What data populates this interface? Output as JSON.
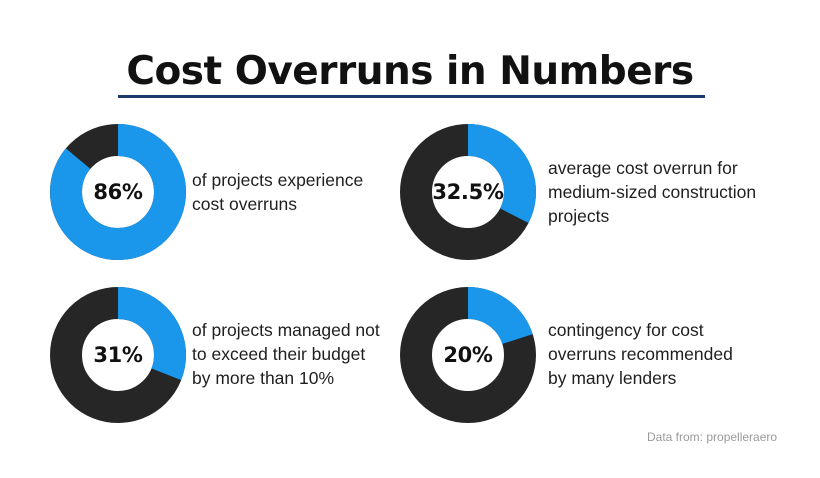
{
  "title": "Cost Overruns in Numbers",
  "chart_data": [
    {
      "type": "pie",
      "subtype": "donut",
      "value": 86,
      "label": "86%",
      "description_lines": [
        "of projects experience",
        "cost overruns"
      ]
    },
    {
      "type": "pie",
      "subtype": "donut",
      "value": 32.5,
      "label": "32.5%",
      "description_lines": [
        "average cost overrun for",
        "medium-sized construction",
        "projects"
      ]
    },
    {
      "type": "pie",
      "subtype": "donut",
      "value": 31,
      "label": "31%",
      "description_lines": [
        "of projects managed not",
        "to exceed their budget",
        "by more than 10%"
      ]
    },
    {
      "type": "pie",
      "subtype": "donut",
      "value": 20,
      "label": "20%",
      "description_lines": [
        "contingency for cost",
        "overruns recommended",
        "by many lenders"
      ]
    }
  ],
  "colors": {
    "accent": "#1a96ea",
    "ring": "#262626",
    "underline": "#1b3a6b"
  },
  "source": "Data from: propelleraero"
}
